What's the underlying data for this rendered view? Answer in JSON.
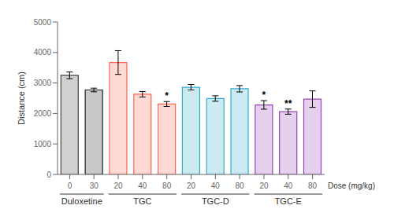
{
  "chart_data": {
    "type": "bar",
    "categories": [
      "0",
      "30",
      "20",
      "40",
      "80",
      "20",
      "40",
      "80",
      "20",
      "40",
      "80"
    ],
    "values": [
      3250,
      2770,
      3670,
      2630,
      2310,
      2860,
      2490,
      2810,
      2280,
      2060,
      2470
    ],
    "errors": [
      110,
      60,
      390,
      90,
      80,
      90,
      90,
      105,
      140,
      85,
      270
    ],
    "significance": [
      null,
      null,
      null,
      null,
      "*",
      null,
      null,
      null,
      "*",
      "**",
      null
    ],
    "colors": [
      "#444444",
      "#222222",
      "#FF6655",
      "#FF6655",
      "#FF6655",
      "#33AACC",
      "#33AACC",
      "#33AACC",
      "#9944BB",
      "#9944BB",
      "#9944BB"
    ],
    "groups": [
      {
        "label": "Duloxetine",
        "first": 0,
        "last": 1
      },
      {
        "label": "TGC",
        "first": 2,
        "last": 4
      },
      {
        "label": "TGC-D",
        "first": 5,
        "last": 7
      },
      {
        "label": "TGC-E",
        "first": 8,
        "last": 10
      }
    ],
    "ylabel": "Distance (cm)",
    "xlabel": "Dose (mg/kg)",
    "ylim": [
      0,
      5000
    ],
    "yticks": [
      0,
      1000,
      2000,
      3000,
      4000,
      5000
    ],
    "grid": false
  }
}
